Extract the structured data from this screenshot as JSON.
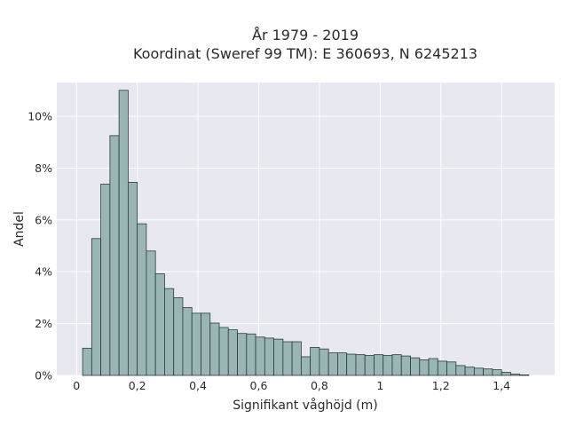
{
  "chart_data": {
    "type": "bar",
    "title_line1": "År 1979 - 2019",
    "title_line2": "Koordinat (Sweref 99 TM): E 360693, N 6245213",
    "xlabel": "Signifikant våghöjd (m)",
    "ylabel": "Andel",
    "xlim": [
      -0.065,
      1.575
    ],
    "ylim": [
      0,
      11.3
    ],
    "grid": true,
    "bin_width": 0.03,
    "bin_start": 0.02,
    "x_ticks": [
      {
        "value": 0,
        "label": "0"
      },
      {
        "value": 0.2,
        "label": "0,2"
      },
      {
        "value": 0.4,
        "label": "0,4"
      },
      {
        "value": 0.6,
        "label": "0,6"
      },
      {
        "value": 0.8,
        "label": "0,8"
      },
      {
        "value": 1.0,
        "label": "1"
      },
      {
        "value": 1.2,
        "label": "1,2"
      },
      {
        "value": 1.4,
        "label": "1,4"
      }
    ],
    "y_ticks": [
      {
        "value": 0,
        "label": "0%"
      },
      {
        "value": 2,
        "label": "2%"
      },
      {
        "value": 4,
        "label": "4%"
      },
      {
        "value": 6,
        "label": "6%"
      },
      {
        "value": 8,
        "label": "8%"
      },
      {
        "value": 10,
        "label": "10%"
      }
    ],
    "values": [
      1.05,
      5.28,
      7.38,
      9.25,
      11.0,
      7.45,
      5.85,
      4.8,
      3.92,
      3.35,
      3.0,
      2.62,
      2.4,
      2.4,
      2.02,
      1.85,
      1.76,
      1.62,
      1.6,
      1.48,
      1.44,
      1.4,
      1.3,
      1.3,
      0.72,
      1.08,
      1.02,
      0.87,
      0.87,
      0.82,
      0.8,
      0.77,
      0.8,
      0.77,
      0.8,
      0.75,
      0.68,
      0.6,
      0.65,
      0.55,
      0.52,
      0.38,
      0.32,
      0.28,
      0.25,
      0.22,
      0.12,
      0.05,
      0.02
    ],
    "colors": {
      "plot_bg": "#e8e8f0",
      "bar_fill": "#9ab5b5",
      "bar_stroke": "#2e3c3c",
      "grid": "#ffffff",
      "text": "#2a2a2a"
    }
  }
}
